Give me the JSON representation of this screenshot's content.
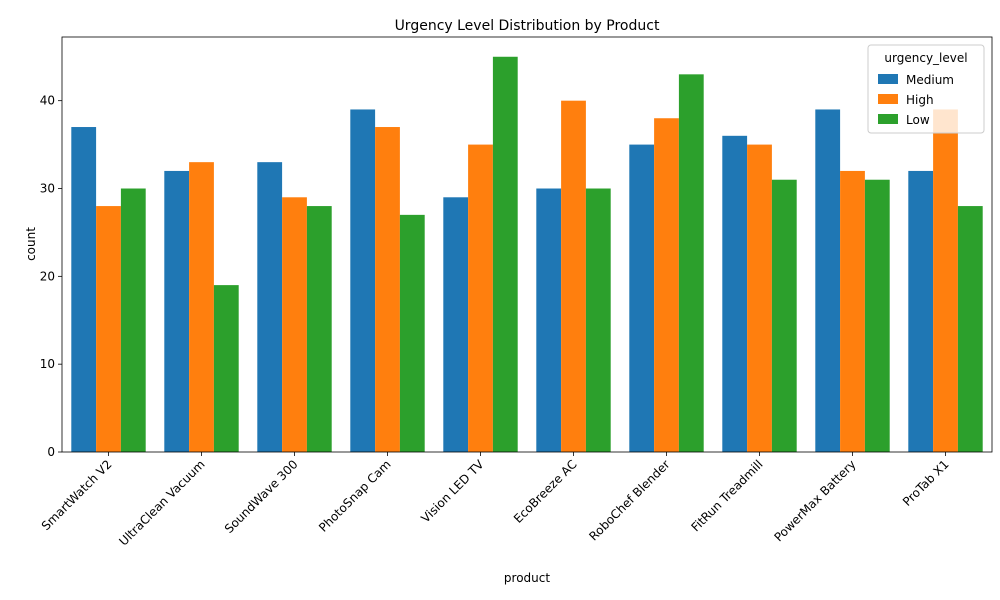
{
  "chart_data": {
    "type": "bar",
    "title": "Urgency Level Distribution by Product",
    "xlabel": "product",
    "ylabel": "count",
    "ylim": [
      0,
      47.25
    ],
    "yticks": [
      0,
      10,
      20,
      30,
      40
    ],
    "categories": [
      "SmartWatch V2",
      "UltraClean Vacuum",
      "SoundWave 300",
      "PhotoSnap Cam",
      "Vision LED TV",
      "EcoBreeze AC",
      "RoboChef Blender",
      "FitRun Treadmill",
      "PowerMax Battery",
      "ProTab X1"
    ],
    "legend_title": "urgency_level",
    "legend_position": "top-right",
    "grid": false,
    "series": [
      {
        "name": "Medium",
        "color": "#1f77b4",
        "values": [
          37,
          32,
          33,
          39,
          29,
          30,
          35,
          36,
          39,
          32
        ]
      },
      {
        "name": "High",
        "color": "#ff7f0e",
        "values": [
          28,
          33,
          29,
          37,
          35,
          40,
          38,
          35,
          32,
          39
        ]
      },
      {
        "name": "Low",
        "color": "#2ca02c",
        "values": [
          30,
          19,
          28,
          27,
          45,
          30,
          43,
          31,
          31,
          28
        ]
      }
    ]
  }
}
